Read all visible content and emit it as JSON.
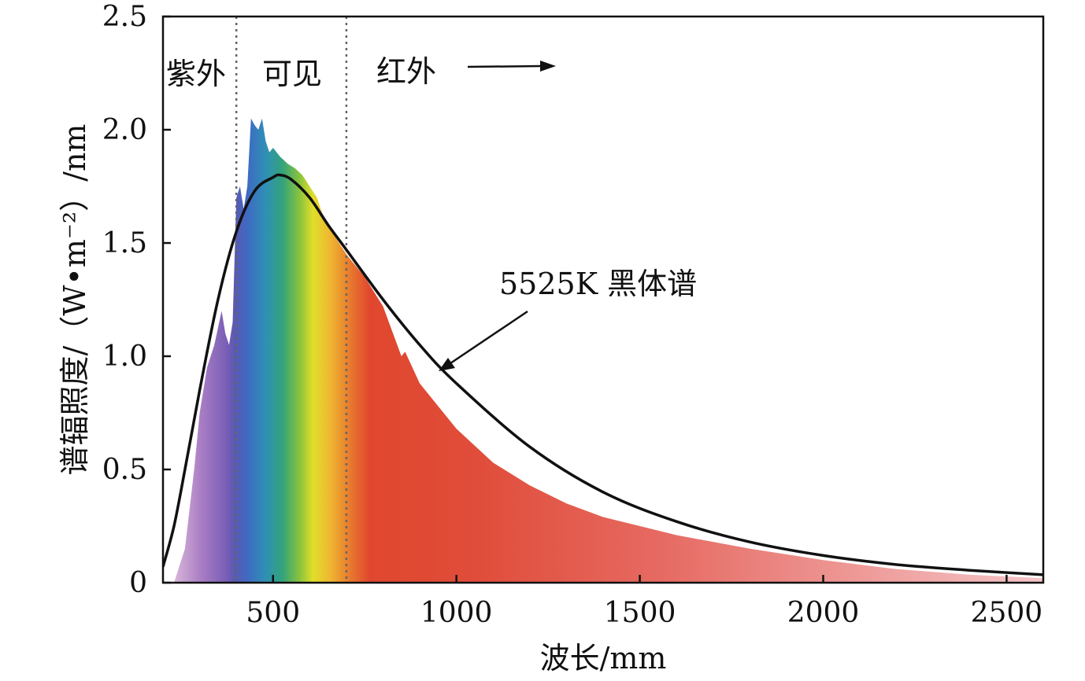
{
  "chart_data": {
    "type": "area",
    "title": "",
    "xlabel": "波长/mm",
    "ylabel": "谱辐照度/（W•m⁻²）/nm",
    "xlim": [
      200,
      2600
    ],
    "ylim": [
      0,
      2.5
    ],
    "x_ticks": [
      500,
      1000,
      1500,
      2000,
      2500
    ],
    "x_tick_labels": [
      "500",
      "1000",
      "1500",
      "2000",
      "2500"
    ],
    "y_ticks": [
      0,
      0.5,
      1.0,
      1.5,
      2.0,
      2.5
    ],
    "y_tick_labels": [
      "0",
      "0.5",
      "1.0",
      "1.5",
      "2.0",
      "2.5"
    ],
    "grid": false,
    "boundaries": [
      {
        "x": 400,
        "style": "dotted"
      },
      {
        "x": 700,
        "style": "dotted"
      }
    ],
    "regions": {
      "uv": "紫外",
      "visible": "可见",
      "ir": "红外"
    },
    "blackbody_label": "5525K 黑体谱",
    "series": [
      {
        "kind": "area",
        "x": [
          230,
          260,
          285,
          300,
          320,
          340,
          360,
          370,
          380,
          390,
          400,
          410,
          420,
          430,
          440,
          450,
          460,
          470,
          480,
          490,
          500,
          520,
          540,
          560,
          580,
          600,
          620,
          640,
          660,
          680,
          700,
          750,
          800,
          850,
          860,
          900,
          1000,
          1100,
          1200,
          1300,
          1400,
          1500,
          1600,
          1800,
          2000,
          2200,
          2400,
          2600
        ],
        "y": [
          0.0,
          0.15,
          0.5,
          0.75,
          0.95,
          1.05,
          1.2,
          1.1,
          1.05,
          1.15,
          1.7,
          1.75,
          1.65,
          1.75,
          2.05,
          2.02,
          2.0,
          2.05,
          1.95,
          1.9,
          1.92,
          1.88,
          1.85,
          1.83,
          1.8,
          1.75,
          1.7,
          1.6,
          1.55,
          1.5,
          1.45,
          1.35,
          1.22,
          1.0,
          1.02,
          0.88,
          0.68,
          0.53,
          0.43,
          0.35,
          0.29,
          0.25,
          0.21,
          0.15,
          0.1,
          0.06,
          0.035,
          0.02
        ]
      },
      {
        "kind": "line",
        "x": [
          200,
          230,
          260,
          300,
          350,
          400,
          450,
          500,
          520,
          550,
          600,
          650,
          700,
          800,
          900,
          1000,
          1200,
          1400,
          1600,
          1800,
          2000,
          2200,
          2400,
          2600
        ],
        "y": [
          0.07,
          0.25,
          0.5,
          0.85,
          1.25,
          1.55,
          1.73,
          1.79,
          1.8,
          1.78,
          1.7,
          1.58,
          1.47,
          1.25,
          1.05,
          0.88,
          0.6,
          0.4,
          0.27,
          0.18,
          0.12,
          0.08,
          0.055,
          0.035
        ]
      }
    ]
  }
}
